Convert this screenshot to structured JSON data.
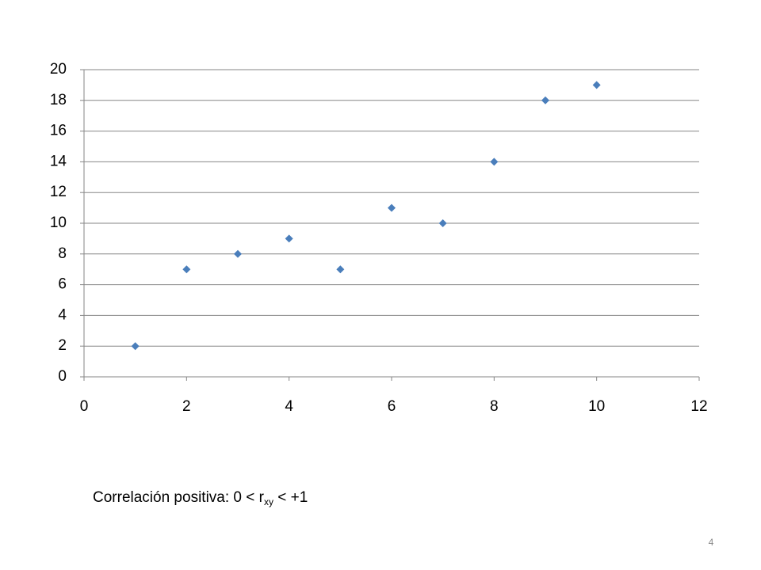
{
  "chart_data": {
    "type": "scatter",
    "x": [
      1,
      2,
      3,
      4,
      5,
      6,
      7,
      8,
      9,
      10
    ],
    "series": [
      {
        "color": "#4a7ebb",
        "values": [
          2,
          7,
          8,
          9,
          7,
          11,
          10,
          14,
          18,
          19
        ]
      }
    ],
    "xlim": [
      0,
      12
    ],
    "xticks": [
      0,
      2,
      4,
      6,
      8,
      10,
      12
    ],
    "ylim": [
      0,
      20
    ],
    "yticks": [
      0,
      2,
      4,
      6,
      8,
      10,
      12,
      14,
      16,
      18,
      20
    ],
    "grid": true
  },
  "caption": {
    "text": "Correlación positiva:  0 < r",
    "subscript": "xy",
    "tail": " < +1"
  },
  "page_number": "4"
}
